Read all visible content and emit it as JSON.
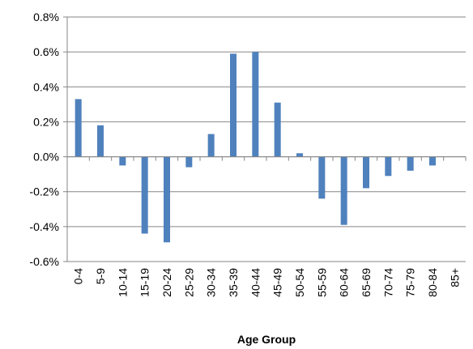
{
  "chart_data": {
    "type": "bar",
    "title": "",
    "xlabel": "Age Group",
    "ylabel": "",
    "categories": [
      "0-4",
      "5-9",
      "10-14",
      "15-19",
      "20-24",
      "25-29",
      "30-34",
      "35-39",
      "40-44",
      "45-49",
      "50-54",
      "55-59",
      "60-64",
      "65-69",
      "70-74",
      "75-79",
      "80-84",
      "85+"
    ],
    "series": [
      {
        "values": [
          0.33,
          0.18,
          -0.05,
          -0.44,
          -0.49,
          -0.06,
          0.13,
          0.59,
          0.6,
          0.31,
          0.02,
          -0.24,
          -0.39,
          -0.18,
          -0.11,
          -0.08,
          -0.05,
          0.0
        ],
        "color": "#4f81bd"
      }
    ],
    "ylim": [
      -0.6,
      0.8
    ],
    "yticks": [
      0.8,
      0.6,
      0.4,
      0.2,
      0.0,
      -0.2,
      -0.4,
      -0.6
    ],
    "ytick_labels": [
      "0.8%",
      "0.6%",
      "0.4%",
      "0.2%",
      "0.0%",
      "-0.2%",
      "-0.4%",
      "-0.6%"
    ],
    "grid": true,
    "gridline_color": "#868686",
    "legend": "none"
  }
}
